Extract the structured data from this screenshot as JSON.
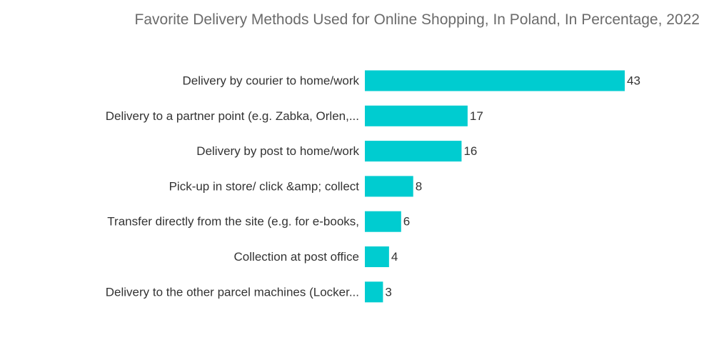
{
  "chart_data": {
    "type": "bar",
    "orientation": "horizontal",
    "title": "Favorite Delivery Methods Used for Online Shopping, In Poland, In Percentage, 2022",
    "categories": [
      "Delivery by courier to home/work",
      "Delivery to a partner point (e.g. Zabka, Orlen,...",
      "Delivery by post to home/work",
      "Pick-up in store/ click &amp; collect",
      "Transfer directly from the site (e.g. for e-books,",
      "Collection at post office",
      "Delivery to the other parcel machines (Locker..."
    ],
    "values": [
      43,
      17,
      16,
      8,
      6,
      4,
      3
    ],
    "xlim": [
      0,
      43
    ],
    "bar_color": "#00ccd0",
    "grid": false,
    "legend": "none"
  }
}
